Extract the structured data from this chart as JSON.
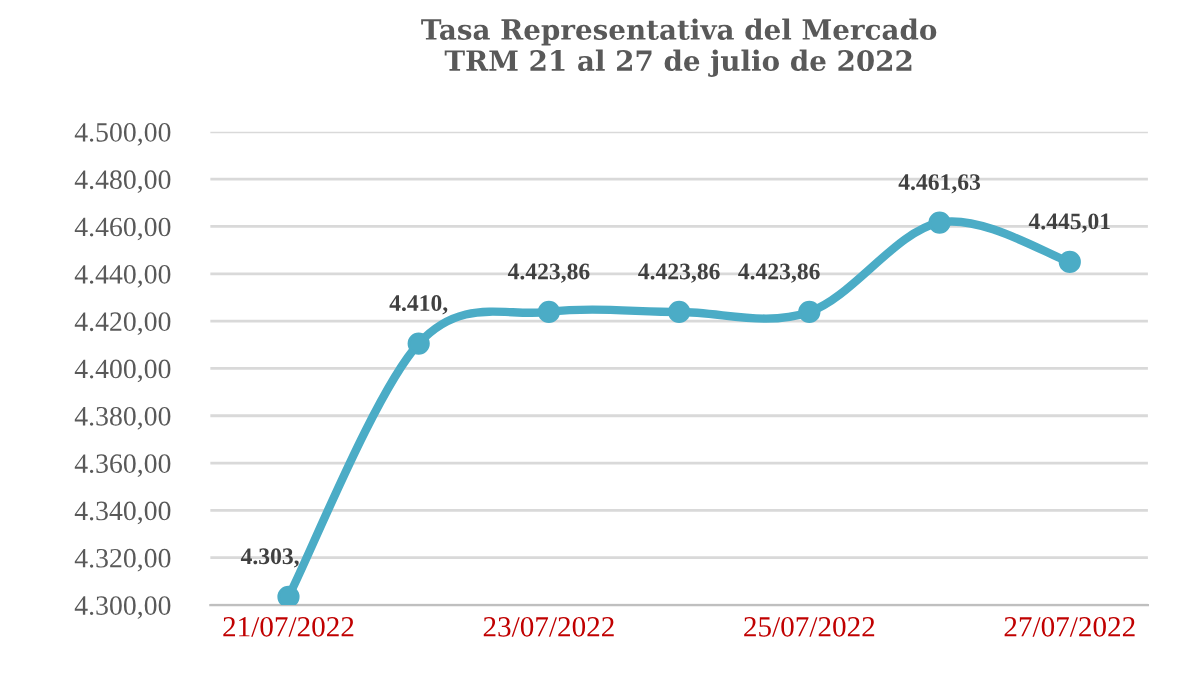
{
  "chart_data": {
    "type": "line",
    "title": "Tasa Representativa del Mercado\nTRM 21 al 27 de julio de 2022",
    "categories": [
      "21/07/2022",
      null,
      "23/07/2022",
      null,
      "25/07/2022",
      null,
      "27/07/2022"
    ],
    "series": [
      {
        "color": "#4bacc6",
        "values": [
          4303.5,
          4410.5,
          4423.86,
          4423.86,
          4423.86,
          4461.63,
          4445.01
        ],
        "value_labels": [
          "4.303,",
          "4.410,",
          "4.423,86",
          "4.423,86",
          "4.423,86",
          "4.461,63",
          "4.445,01"
        ]
      }
    ],
    "ylim": [
      4300,
      4500
    ],
    "yticks": [
      {
        "value": 4300,
        "label": "4.300,00"
      },
      {
        "value": 4320,
        "label": "4.320,00"
      },
      {
        "value": 4340,
        "label": "4.340,00"
      },
      {
        "value": 4360,
        "label": "4.360,00"
      },
      {
        "value": 4380,
        "label": "4.380,00"
      },
      {
        "value": 4400,
        "label": "4.400,00"
      },
      {
        "value": 4420,
        "label": "4.420,00"
      },
      {
        "value": 4440,
        "label": "4.440,00"
      },
      {
        "value": 4460,
        "label": "4.460,00"
      },
      {
        "value": 4480,
        "label": "4.480,00"
      },
      {
        "value": 4500,
        "label": "4.500,00"
      }
    ],
    "grid": "y",
    "marker": "circle",
    "line_style": "solid",
    "legend": false
  }
}
